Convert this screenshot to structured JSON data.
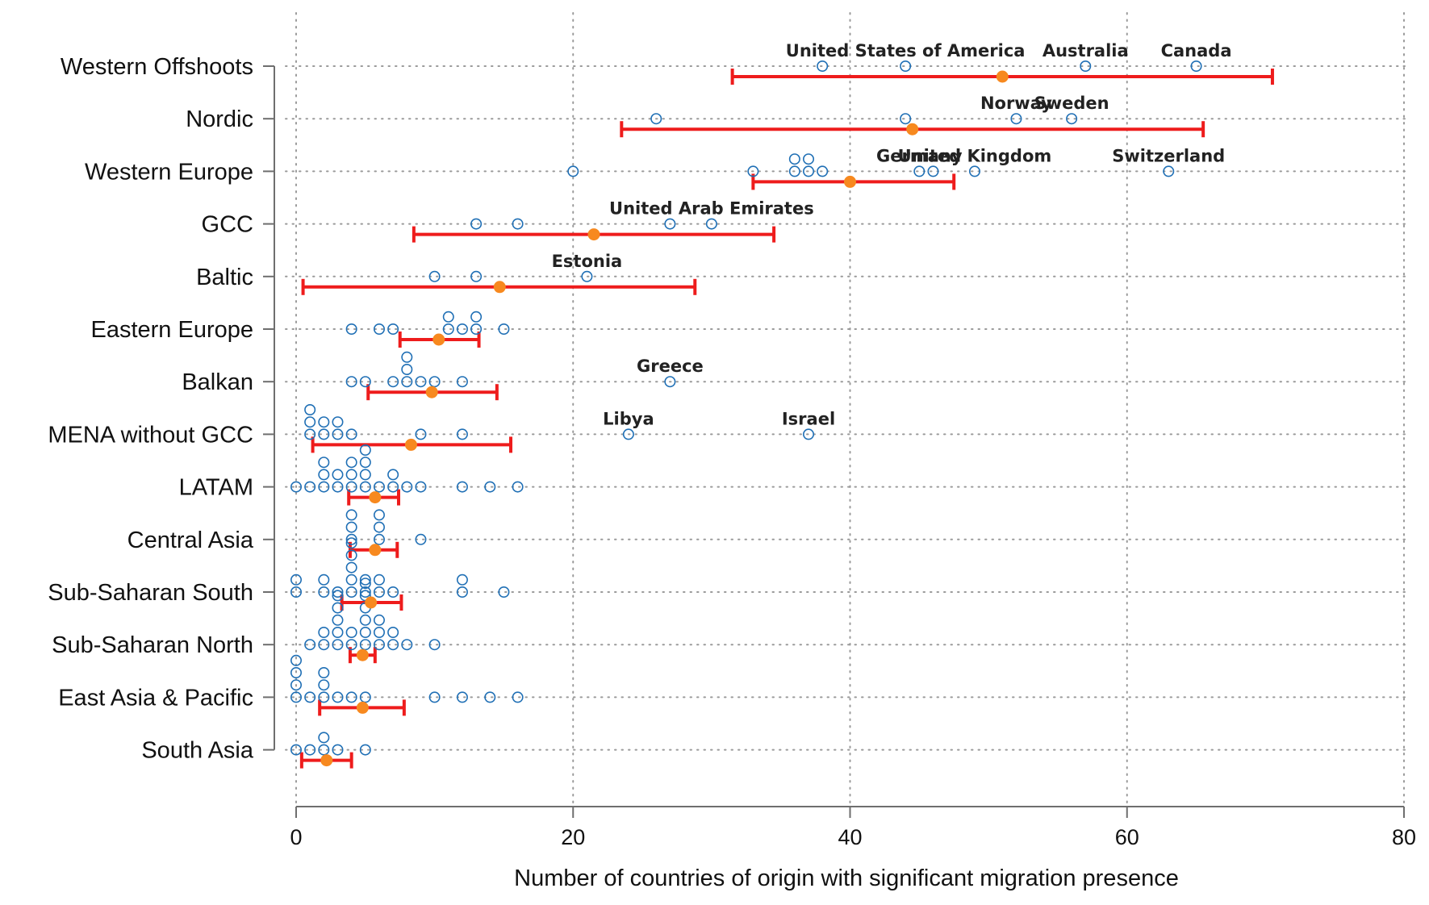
{
  "chart_data": {
    "type": "scatter",
    "title": "",
    "xlabel": "Number of countries of origin with significant migration presence",
    "ylabel": "",
    "xlim": [
      0,
      80
    ],
    "xticks": [
      0,
      20,
      40,
      60,
      80
    ],
    "grid": true,
    "colors": {
      "points": "#1f6fb5",
      "mean": "#f7891f",
      "interval": "#ee1c1c"
    },
    "groups": [
      {
        "name": "Western Offshoots",
        "mean": 51,
        "ci": [
          31.5,
          70.5
        ],
        "values": [
          38,
          44,
          57,
          65
        ]
      },
      {
        "name": "Nordic",
        "mean": 44.5,
        "ci": [
          23.5,
          65.5
        ],
        "values": [
          26,
          44,
          52,
          56
        ]
      },
      {
        "name": "Western Europe",
        "mean": 40,
        "ci": [
          33,
          47.5
        ],
        "values": [
          20,
          33,
          36,
          36,
          37,
          37,
          38,
          45,
          46,
          49,
          63
        ]
      },
      {
        "name": "GCC",
        "mean": 21.5,
        "ci": [
          8.5,
          34.5
        ],
        "values": [
          13,
          16,
          27,
          30
        ]
      },
      {
        "name": "Baltic",
        "mean": 14.7,
        "ci": [
          0.5,
          28.8
        ],
        "values": [
          10,
          13,
          21
        ]
      },
      {
        "name": "Eastern Europe",
        "mean": 10.3,
        "ci": [
          7.5,
          13.2
        ],
        "values": [
          4,
          6,
          7,
          11,
          11,
          12,
          13,
          13,
          15
        ]
      },
      {
        "name": "Balkan",
        "mean": 9.8,
        "ci": [
          5.2,
          14.5
        ],
        "values": [
          4,
          5,
          7,
          8,
          8,
          8,
          9,
          10,
          12,
          27
        ]
      },
      {
        "name": "MENA without GCC",
        "mean": 8.3,
        "ci": [
          1.2,
          15.5
        ],
        "values": [
          1,
          1,
          1,
          2,
          2,
          3,
          3,
          4,
          9,
          12,
          24,
          37
        ]
      },
      {
        "name": "LATAM",
        "mean": 5.7,
        "ci": [
          3.8,
          7.4
        ],
        "values": [
          0,
          1,
          2,
          2,
          2,
          3,
          3,
          4,
          4,
          4,
          5,
          5,
          5,
          5,
          6,
          7,
          7,
          8,
          9,
          12,
          14,
          16
        ]
      },
      {
        "name": "Central Asia",
        "mean": 5.7,
        "ci": [
          3.9,
          7.3
        ],
        "values": [
          4,
          4,
          4,
          6,
          6,
          6,
          9
        ]
      },
      {
        "name": "Sub-Saharan South",
        "mean": 5.4,
        "ci": [
          3.3,
          7.6
        ],
        "values": [
          0,
          0,
          2,
          2,
          3,
          4,
          4,
          4,
          4,
          4,
          5,
          5,
          6,
          6,
          7,
          12,
          12,
          15
        ]
      },
      {
        "name": "Sub-Saharan North",
        "mean": 4.8,
        "ci": [
          3.9,
          5.7
        ],
        "values": [
          1,
          2,
          2,
          3,
          3,
          3,
          3,
          3,
          4,
          4,
          5,
          5,
          5,
          5,
          5,
          5,
          6,
          6,
          6,
          7,
          7,
          8,
          10
        ]
      },
      {
        "name": "East Asia & Pacific",
        "mean": 4.8,
        "ci": [
          1.7,
          7.8
        ],
        "values": [
          0,
          0,
          0,
          0,
          1,
          2,
          2,
          2,
          3,
          4,
          5,
          10,
          12,
          14,
          16
        ]
      },
      {
        "name": "South Asia",
        "mean": 2.2,
        "ci": [
          0.4,
          4
        ],
        "values": [
          0,
          1,
          2,
          2,
          3,
          5
        ]
      }
    ],
    "annotations": [
      {
        "text": "United States of America",
        "x": 44,
        "group": "Western Offshoots"
      },
      {
        "text": "Australia",
        "x": 57,
        "group": "Western Offshoots"
      },
      {
        "text": "Canada",
        "x": 65,
        "group": "Western Offshoots"
      },
      {
        "text": "Norway",
        "x": 52,
        "group": "Nordic"
      },
      {
        "text": "Sweden",
        "x": 56,
        "group": "Nordic"
      },
      {
        "text": "Germany",
        "x": 45,
        "group": "Western Europe"
      },
      {
        "text": "United Kingdom",
        "x": 49,
        "group": "Western Europe"
      },
      {
        "text": "Switzerland",
        "x": 63,
        "group": "Western Europe"
      },
      {
        "text": "United Arab Emirates",
        "x": 30,
        "group": "GCC"
      },
      {
        "text": "Estonia",
        "x": 21,
        "group": "Baltic"
      },
      {
        "text": "Greece",
        "x": 27,
        "group": "Balkan"
      },
      {
        "text": "Libya",
        "x": 24,
        "group": "MENA without GCC"
      },
      {
        "text": "Israel",
        "x": 37,
        "group": "MENA without GCC"
      }
    ]
  }
}
